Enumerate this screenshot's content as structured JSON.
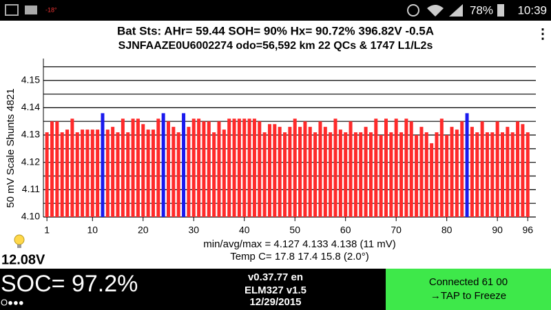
{
  "status_bar": {
    "temperature": "-18°",
    "battery": "78%",
    "time": "10:39"
  },
  "header": {
    "line1": "Bat Sts:  AHr= 59.44  SOH= 90%  Hx= 90.72%   396.82V -0.5A",
    "line2": "SJNFAAZE0U6002274 odo=56,592 km  22 QCs & 1747 L1/L2s",
    "menu": "⋮"
  },
  "chart_data": {
    "type": "bar",
    "y_label": "50 mV Scale   Shunts 4821",
    "x": [
      1,
      2,
      3,
      4,
      5,
      6,
      7,
      8,
      9,
      10,
      11,
      12,
      13,
      14,
      15,
      16,
      17,
      18,
      19,
      20,
      21,
      22,
      23,
      24,
      25,
      26,
      27,
      28,
      29,
      30,
      31,
      32,
      33,
      34,
      35,
      36,
      37,
      38,
      39,
      40,
      41,
      42,
      43,
      44,
      45,
      46,
      47,
      48,
      49,
      50,
      51,
      52,
      53,
      54,
      55,
      56,
      57,
      58,
      59,
      60,
      61,
      62,
      63,
      64,
      65,
      66,
      67,
      68,
      69,
      70,
      71,
      72,
      73,
      74,
      75,
      76,
      77,
      78,
      79,
      80,
      81,
      82,
      83,
      84,
      85,
      86,
      87,
      88,
      89,
      90,
      91,
      92,
      93,
      94,
      95,
      96
    ],
    "values": [
      4.131,
      4.135,
      4.135,
      4.131,
      4.132,
      4.136,
      4.131,
      4.132,
      4.132,
      4.132,
      4.132,
      4.138,
      4.132,
      4.133,
      4.131,
      4.136,
      4.131,
      4.136,
      4.136,
      4.134,
      4.132,
      4.132,
      4.136,
      4.138,
      4.135,
      4.133,
      4.131,
      4.138,
      4.133,
      4.136,
      4.136,
      4.135,
      4.135,
      4.131,
      4.135,
      4.132,
      4.136,
      4.136,
      4.136,
      4.136,
      4.136,
      4.136,
      4.135,
      4.131,
      4.134,
      4.134,
      4.133,
      4.131,
      4.133,
      4.136,
      4.133,
      4.135,
      4.133,
      4.131,
      4.135,
      4.133,
      4.131,
      4.136,
      4.132,
      4.131,
      4.135,
      4.131,
      4.131,
      4.133,
      4.131,
      4.136,
      4.13,
      4.136,
      4.131,
      4.136,
      4.131,
      4.136,
      4.135,
      4.13,
      4.133,
      4.131,
      4.127,
      4.131,
      4.136,
      4.13,
      4.133,
      4.132,
      4.135,
      4.138,
      4.133,
      4.131,
      4.135,
      4.131,
      4.131,
      4.135,
      4.131,
      4.133,
      4.131,
      4.135,
      4.134,
      4.131
    ],
    "color": "#ff2a2a",
    "highlight": [
      12,
      24,
      28,
      84
    ],
    "highlight_color": "#1a1aee",
    "xlim": [
      0.3,
      97.6
    ],
    "xticks": [
      1,
      10,
      20,
      30,
      40,
      50,
      60,
      70,
      80,
      90,
      96
    ],
    "ylim": [
      4.1,
      4.158
    ],
    "yticks": [
      {
        "value": 4.1,
        "label": "4.10"
      },
      4.11,
      4.12,
      4.13,
      4.14,
      4.15
    ],
    "y_minor_ticks": [
      4.105,
      4.115,
      4.125,
      4.135,
      4.145,
      4.155
    ],
    "grid": true
  },
  "stats": {
    "minavgmax": "min/avg/max = 4.127 4.133 4.138  (11 mV)",
    "temp": "Temp C= 17.8  17.4  15.8  (2.0°)",
    "aux_voltage": "12.08V"
  },
  "footer": {
    "soc": "SOC= 97.2%",
    "dots": "O●●●",
    "version": "v0.37.77 en",
    "adapter": "ELM327 v1.5",
    "date": "12/29/2015",
    "connection": "Connected 61 00",
    "action": "→TAP to Freeze"
  }
}
